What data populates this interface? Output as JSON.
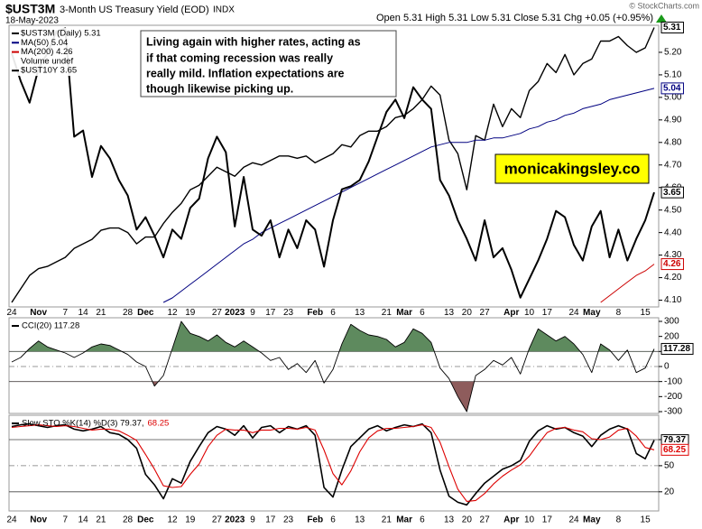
{
  "chart_data": [
    {
      "type": "line",
      "title": "$UST3M",
      "subtitle": "3-Month US Treasury Yield (EOD)",
      "exchange": "INDX",
      "date": "18-May-2023",
      "quote": "Open 5.31 High 5.31 Low 5.31 Close 5.31 Chg +0.05 (+0.95%)",
      "source": "© StockCharts.com",
      "volume_label": "Volume undef",
      "annotation": [
        "Living again with higher rates, acting as",
        "if that coming recession was really",
        "really mild. Inflation expectations are",
        "though likewise picking up."
      ],
      "watermark": "monicakingsley.co",
      "categories": [
        "24",
        null,
        null,
        "Nov",
        null,
        null,
        "7",
        null,
        "14",
        null,
        "21",
        null,
        null,
        "28",
        null,
        "Dec",
        null,
        null,
        "12",
        null,
        "19",
        null,
        null,
        "27",
        null,
        "2023",
        null,
        "9",
        null,
        "17",
        null,
        "23",
        null,
        null,
        "Feb",
        null,
        "6",
        null,
        null,
        "13",
        null,
        null,
        "21",
        null,
        "Mar",
        null,
        "6",
        null,
        null,
        "13",
        null,
        "20",
        null,
        "27",
        null,
        null,
        "Apr",
        null,
        "10",
        null,
        "17",
        null,
        null,
        "24",
        null,
        "May",
        null,
        null,
        "8",
        null,
        null,
        "15",
        null
      ],
      "ylim": [
        4.07,
        5.32
      ],
      "y2lim": [
        3.28,
        4.19
      ],
      "yticks": [
        {
          "value": 5.2,
          "label": "5.20"
        },
        {
          "value": 5.1,
          "label": "5.10"
        },
        {
          "value": 5.0,
          "label": "5.00"
        },
        {
          "value": 4.9,
          "label": "4.90"
        },
        {
          "value": 4.8,
          "label": "4.80"
        },
        {
          "value": 4.7,
          "label": "4.70"
        },
        {
          "value": 4.6,
          "label": "4.60"
        },
        {
          "value": 4.5,
          "label": "4.50"
        },
        {
          "value": 4.4,
          "label": "4.40"
        },
        {
          "value": 4.3,
          "label": "4.30"
        },
        {
          "value": 4.2,
          "label": "4.20"
        },
        {
          "value": 4.1,
          "label": "4.10"
        }
      ],
      "series": [
        {
          "name": "$UST3M (Daily) 5.31",
          "color": "#000000",
          "line_width": 1.4,
          "values": [
            4.09,
            4.15,
            4.21,
            4.24,
            4.25,
            4.27,
            4.29,
            4.33,
            4.35,
            4.37,
            4.41,
            4.42,
            4.42,
            4.4,
            4.35,
            4.38,
            4.38,
            4.44,
            4.49,
            4.53,
            4.59,
            4.61,
            4.65,
            4.69,
            4.67,
            4.65,
            4.69,
            4.71,
            4.7,
            4.72,
            4.74,
            4.74,
            4.73,
            4.74,
            4.71,
            4.73,
            4.75,
            4.79,
            4.78,
            4.83,
            4.85,
            4.85,
            4.87,
            4.91,
            4.92,
            4.95,
            4.99,
            5.05,
            5.01,
            4.81,
            4.75,
            4.59,
            4.83,
            4.81,
            4.97,
            4.87,
            4.95,
            4.91,
            5.03,
            5.07,
            5.15,
            5.11,
            5.19,
            5.1,
            5.15,
            5.17,
            5.25,
            5.25,
            5.27,
            5.23,
            5.2,
            5.22,
            5.31
          ]
        },
        {
          "name": "MA(50) 5.04",
          "color": "#000080",
          "line_width": 1,
          "values": [
            null,
            null,
            null,
            null,
            null,
            null,
            null,
            null,
            null,
            null,
            null,
            null,
            null,
            null,
            null,
            null,
            null,
            4.09,
            4.11,
            4.14,
            4.17,
            4.2,
            4.23,
            4.26,
            4.29,
            4.32,
            4.35,
            4.37,
            4.4,
            4.42,
            4.44,
            4.46,
            4.48,
            4.5,
            4.52,
            4.54,
            4.56,
            4.58,
            4.6,
            4.62,
            4.64,
            4.66,
            4.68,
            4.7,
            4.72,
            4.74,
            4.76,
            4.78,
            4.79,
            4.8,
            4.8,
            4.8,
            4.81,
            4.81,
            4.82,
            4.82,
            4.83,
            4.84,
            4.86,
            4.87,
            4.89,
            4.9,
            4.92,
            4.93,
            4.95,
            4.96,
            4.97,
            4.99,
            5.0,
            5.01,
            5.02,
            5.03,
            5.04
          ]
        },
        {
          "name": "MA(200) 4.26",
          "color": "#cc0000",
          "line_width": 1,
          "values": [
            null,
            null,
            null,
            null,
            null,
            null,
            null,
            null,
            null,
            null,
            null,
            null,
            null,
            null,
            null,
            null,
            null,
            null,
            null,
            null,
            null,
            null,
            null,
            null,
            null,
            null,
            null,
            null,
            null,
            null,
            null,
            null,
            null,
            null,
            null,
            null,
            null,
            null,
            null,
            null,
            null,
            null,
            null,
            null,
            null,
            null,
            null,
            null,
            null,
            null,
            null,
            null,
            null,
            null,
            null,
            null,
            null,
            null,
            null,
            null,
            null,
            null,
            null,
            null,
            null,
            null,
            4.09,
            4.12,
            4.15,
            4.18,
            4.21,
            4.23,
            4.26
          ]
        },
        {
          "name": "$UST10Y 3.65",
          "color": "#000000",
          "line_width": 2,
          "axis": "y2",
          "values": [
            4.1,
            4.01,
            3.94,
            4.05,
            4.1,
            4.17,
            4.18,
            3.83,
            3.85,
            3.7,
            3.8,
            3.76,
            3.69,
            3.64,
            3.53,
            3.57,
            3.51,
            3.44,
            3.53,
            3.5,
            3.6,
            3.63,
            3.76,
            3.83,
            3.78,
            3.54,
            3.7,
            3.53,
            3.51,
            3.56,
            3.44,
            3.53,
            3.47,
            3.56,
            3.53,
            3.41,
            3.56,
            3.66,
            3.67,
            3.69,
            3.75,
            3.83,
            3.91,
            3.95,
            3.89,
            3.99,
            3.95,
            3.92,
            3.69,
            3.64,
            3.56,
            3.5,
            3.43,
            3.56,
            3.44,
            3.47,
            3.4,
            3.31,
            3.37,
            3.43,
            3.5,
            3.59,
            3.57,
            3.48,
            3.43,
            3.54,
            3.59,
            3.44,
            3.53,
            3.43,
            3.5,
            3.56,
            3.65
          ]
        }
      ]
    },
    {
      "type": "line",
      "ylim": [
        -312,
        324
      ],
      "yticks": [
        300,
        200,
        100,
        0,
        -100,
        -200,
        -300
      ],
      "reference_lines": [
        {
          "value": 100,
          "dash": false
        },
        {
          "value": 0,
          "dash": true
        },
        {
          "value": -100,
          "dash": false
        }
      ],
      "fills": [
        {
          "side": "above",
          "value": 100,
          "color": "#5e8a5e"
        },
        {
          "side": "below",
          "value": -100,
          "color": "#8e5c5c"
        }
      ],
      "series": [
        {
          "name": "CCI(20) 117.28",
          "color": "#000000",
          "line_width": 0.9,
          "values": [
            30,
            60,
            120,
            170,
            130,
            110,
            90,
            60,
            90,
            130,
            150,
            140,
            110,
            80,
            30,
            0,
            -130,
            -60,
            120,
            300,
            220,
            200,
            170,
            210,
            160,
            130,
            170,
            130,
            90,
            40,
            60,
            -20,
            20,
            -40,
            40,
            -110,
            -20,
            150,
            280,
            240,
            210,
            200,
            180,
            130,
            160,
            250,
            220,
            160,
            -10,
            -80,
            -200,
            -300,
            -60,
            -20,
            40,
            10,
            60,
            -50,
            120,
            250,
            210,
            170,
            200,
            150,
            80,
            -40,
            150,
            110,
            40,
            110,
            -40,
            -10,
            117.28
          ]
        }
      ]
    },
    {
      "type": "line",
      "ylim": [
        -2,
        108
      ],
      "yticks": [
        80,
        50,
        20
      ],
      "reference_lines": [
        {
          "value": 80,
          "dash": false
        },
        {
          "value": 50,
          "dash": true
        },
        {
          "value": 20,
          "dash": false
        }
      ],
      "series": [
        {
          "name": "Slow STO %K(14) %D(3) 79.37,",
          "color": "#000000",
          "line_width": 1.6,
          "values": [
            95,
            97,
            98,
            96,
            94,
            96,
            97,
            92,
            90,
            92,
            95,
            88,
            86,
            80,
            70,
            40,
            28,
            12,
            35,
            30,
            55,
            72,
            88,
            95,
            92,
            85,
            96,
            82,
            94,
            96,
            88,
            95,
            92,
            96,
            85,
            25,
            14,
            45,
            72,
            82,
            92,
            96,
            90,
            94,
            97,
            95,
            98,
            88,
            45,
            15,
            8,
            5,
            18,
            30,
            38,
            46,
            50,
            56,
            78,
            90,
            96,
            92,
            94,
            88,
            84,
            72,
            85,
            92,
            96,
            92,
            64,
            58,
            79.37
          ]
        },
        {
          "name": "68.25",
          "color": "#dd0000",
          "line_width": 1.1,
          "values": [
            94,
            95,
            96,
            97,
            96,
            95,
            96,
            95,
            93,
            91,
            92,
            92,
            90,
            85,
            79,
            63,
            46,
            27,
            25,
            26,
            40,
            52,
            72,
            85,
            92,
            91,
            91,
            88,
            91,
            91,
            93,
            93,
            92,
            94,
            91,
            68,
            41,
            28,
            44,
            66,
            82,
            90,
            93,
            93,
            94,
            95,
            97,
            94,
            77,
            49,
            23,
            9,
            10,
            18,
            29,
            38,
            45,
            51,
            61,
            75,
            88,
            93,
            94,
            91,
            89,
            81,
            80,
            83,
            91,
            93,
            84,
            71,
            68.25
          ]
        }
      ]
    }
  ]
}
